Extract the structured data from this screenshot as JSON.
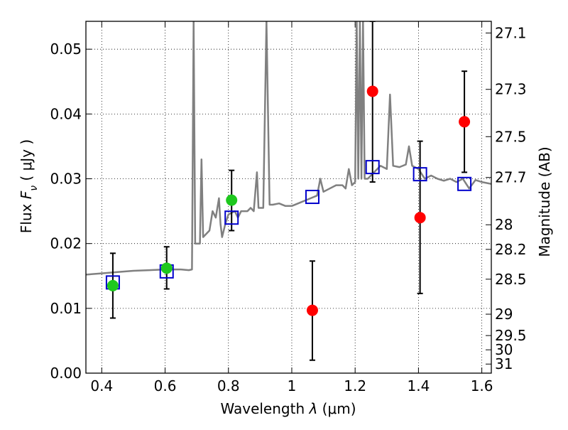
{
  "chart_data": {
    "type": "scatter",
    "xlabel": "Wavelength  λ (μm)",
    "ylabel": "Flux  F_ν  ( μJy )",
    "ylabel_parts": {
      "prefix": "Flux  ",
      "symbol": "F",
      "subscript": "ν",
      "suffix": "  ( μJy )"
    },
    "xlabel_parts": {
      "prefix": "Wavelength  ",
      "symbol": "λ",
      "suffix": " (μm)"
    },
    "right_ylabel": "Magnitude (AB)",
    "xlim": [
      0.35,
      1.63
    ],
    "ylim": [
      0.0,
      0.0543
    ],
    "grid": true,
    "x_ticks": [
      {
        "value": 0.4,
        "label": "0.4"
      },
      {
        "value": 0.6,
        "label": "0.6"
      },
      {
        "value": 0.8,
        "label": "0.8"
      },
      {
        "value": 1.0,
        "label": "1"
      },
      {
        "value": 1.2,
        "label": "1.2"
      },
      {
        "value": 1.4,
        "label": "1.4"
      },
      {
        "value": 1.6,
        "label": "1.6"
      }
    ],
    "y_ticks": [
      {
        "value": 0.0,
        "label": "0.00"
      },
      {
        "value": 0.01,
        "label": "0.01"
      },
      {
        "value": 0.02,
        "label": "0.02"
      },
      {
        "value": 0.03,
        "label": "0.03"
      },
      {
        "value": 0.04,
        "label": "0.04"
      },
      {
        "value": 0.05,
        "label": "0.05"
      }
    ],
    "right_ticks": [
      {
        "flux": 0.0525,
        "label": "27.1"
      },
      {
        "flux": 0.0438,
        "label": "27.3"
      },
      {
        "flux": 0.0365,
        "label": "27.5"
      },
      {
        "flux": 0.0302,
        "label": "27.7"
      },
      {
        "flux": 0.0229,
        "label": "28"
      },
      {
        "flux": 0.0191,
        "label": "28.2"
      },
      {
        "flux": 0.0145,
        "label": "28.5"
      },
      {
        "flux": 0.0091,
        "label": "29"
      },
      {
        "flux": 0.0058,
        "label": "29.5"
      },
      {
        "flux": 0.0036,
        "label": "30"
      },
      {
        "flux": 0.0014,
        "label": "31"
      }
    ],
    "spectrum": {
      "color": "#808080",
      "points": [
        [
          0.35,
          0.0152
        ],
        [
          0.4,
          0.0154
        ],
        [
          0.45,
          0.0156
        ],
        [
          0.5,
          0.0158
        ],
        [
          0.55,
          0.0159
        ],
        [
          0.6,
          0.016
        ],
        [
          0.65,
          0.016
        ],
        [
          0.675,
          0.0159
        ],
        [
          0.685,
          0.016
        ],
        [
          0.69,
          0.0543
        ],
        [
          0.695,
          0.02
        ],
        [
          0.71,
          0.02
        ],
        [
          0.715,
          0.033
        ],
        [
          0.72,
          0.021
        ],
        [
          0.74,
          0.022
        ],
        [
          0.75,
          0.025
        ],
        [
          0.76,
          0.024
        ],
        [
          0.77,
          0.027
        ],
        [
          0.775,
          0.023
        ],
        [
          0.78,
          0.021
        ],
        [
          0.79,
          0.023
        ],
        [
          0.8,
          0.0245
        ],
        [
          0.82,
          0.025
        ],
        [
          0.83,
          0.024
        ],
        [
          0.84,
          0.025
        ],
        [
          0.86,
          0.025
        ],
        [
          0.87,
          0.0255
        ],
        [
          0.88,
          0.025
        ],
        [
          0.89,
          0.031
        ],
        [
          0.895,
          0.0255
        ],
        [
          0.91,
          0.0255
        ],
        [
          0.92,
          0.0543
        ],
        [
          0.93,
          0.026
        ],
        [
          0.94,
          0.026
        ],
        [
          0.96,
          0.0262
        ],
        [
          0.98,
          0.0258
        ],
        [
          1.0,
          0.0258
        ],
        [
          1.02,
          0.0262
        ],
        [
          1.04,
          0.0266
        ],
        [
          1.06,
          0.027
        ],
        [
          1.08,
          0.0274
        ],
        [
          1.09,
          0.03
        ],
        [
          1.1,
          0.028
        ],
        [
          1.12,
          0.0285
        ],
        [
          1.14,
          0.029
        ],
        [
          1.16,
          0.029
        ],
        [
          1.17,
          0.0285
        ],
        [
          1.18,
          0.0315
        ],
        [
          1.19,
          0.029
        ],
        [
          1.2,
          0.0295
        ],
        [
          1.205,
          0.0543
        ],
        [
          1.21,
          0.03
        ],
        [
          1.215,
          0.0543
        ],
        [
          1.22,
          0.03
        ],
        [
          1.225,
          0.0543
        ],
        [
          1.23,
          0.03
        ],
        [
          1.24,
          0.03
        ],
        [
          1.26,
          0.031
        ],
        [
          1.28,
          0.032
        ],
        [
          1.3,
          0.0315
        ],
        [
          1.31,
          0.043
        ],
        [
          1.32,
          0.032
        ],
        [
          1.34,
          0.0318
        ],
        [
          1.36,
          0.0322
        ],
        [
          1.37,
          0.035
        ],
        [
          1.38,
          0.032
        ],
        [
          1.4,
          0.0315
        ],
        [
          1.42,
          0.03
        ],
        [
          1.44,
          0.0305
        ],
        [
          1.46,
          0.03
        ],
        [
          1.48,
          0.0297
        ],
        [
          1.5,
          0.03
        ],
        [
          1.52,
          0.0295
        ],
        [
          1.54,
          0.03
        ],
        [
          1.56,
          0.0285
        ],
        [
          1.58,
          0.0298
        ],
        [
          1.6,
          0.0295
        ],
        [
          1.63,
          0.0292
        ]
      ]
    },
    "red_points": {
      "color": "#ff0000",
      "points": [
        {
          "x": 1.065,
          "y": 0.0097,
          "err_low": 0.002,
          "err_high": 0.0173
        },
        {
          "x": 1.255,
          "y": 0.0435,
          "err_low": 0.0295,
          "err_high": 0.0543
        },
        {
          "x": 1.405,
          "y": 0.024,
          "err_low": 0.0123,
          "err_high": 0.0358
        },
        {
          "x": 1.545,
          "y": 0.0388,
          "err_low": 0.031,
          "err_high": 0.0466
        }
      ]
    },
    "green_points": {
      "color": "#1ec81e",
      "points": [
        {
          "x": 0.435,
          "y": 0.0135,
          "err_low": 0.0085,
          "err_high": 0.0185
        },
        {
          "x": 0.605,
          "y": 0.0162,
          "err_low": 0.013,
          "err_high": 0.0195
        },
        {
          "x": 0.81,
          "y": 0.0267,
          "err_low": 0.022,
          "err_high": 0.0313
        }
      ]
    },
    "blue_squares": {
      "color": "#0000cc",
      "points": [
        {
          "x": 0.435,
          "y": 0.014
        },
        {
          "x": 0.605,
          "y": 0.0157
        },
        {
          "x": 0.81,
          "y": 0.024
        },
        {
          "x": 1.065,
          "y": 0.0272
        },
        {
          "x": 1.255,
          "y": 0.0318
        },
        {
          "x": 1.405,
          "y": 0.0307
        },
        {
          "x": 1.545,
          "y": 0.0292
        }
      ]
    }
  }
}
